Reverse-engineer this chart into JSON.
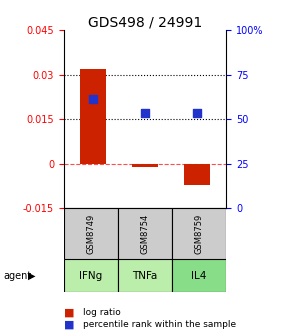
{
  "title": "GDS498 / 24991",
  "samples": [
    "GSM8749",
    "GSM8754",
    "GSM8759"
  ],
  "agents": [
    "IFNg",
    "TNFa",
    "IL4"
  ],
  "log_ratios": [
    0.032,
    -0.001,
    -0.007
  ],
  "percentile_ranks_val": [
    0.022,
    0.017,
    0.017
  ],
  "ylim_left": [
    -0.015,
    0.045
  ],
  "ylim_right": [
    0,
    100
  ],
  "yticks_left": [
    -0.015,
    0,
    0.015,
    0.03,
    0.045
  ],
  "yticks_right": [
    0,
    25,
    50,
    75,
    100
  ],
  "hline_dotted": [
    0.015,
    0.03
  ],
  "hline_dashed": 0.0,
  "bar_color": "#cc2200",
  "square_color": "#2233cc",
  "agent_colors": [
    "#bbeeaa",
    "#bbeeaa",
    "#88dd88"
  ],
  "sample_bg": "#cccccc",
  "bar_width": 0.5,
  "title_fontsize": 10,
  "tick_fontsize": 7,
  "legend_fontsize": 6.5
}
